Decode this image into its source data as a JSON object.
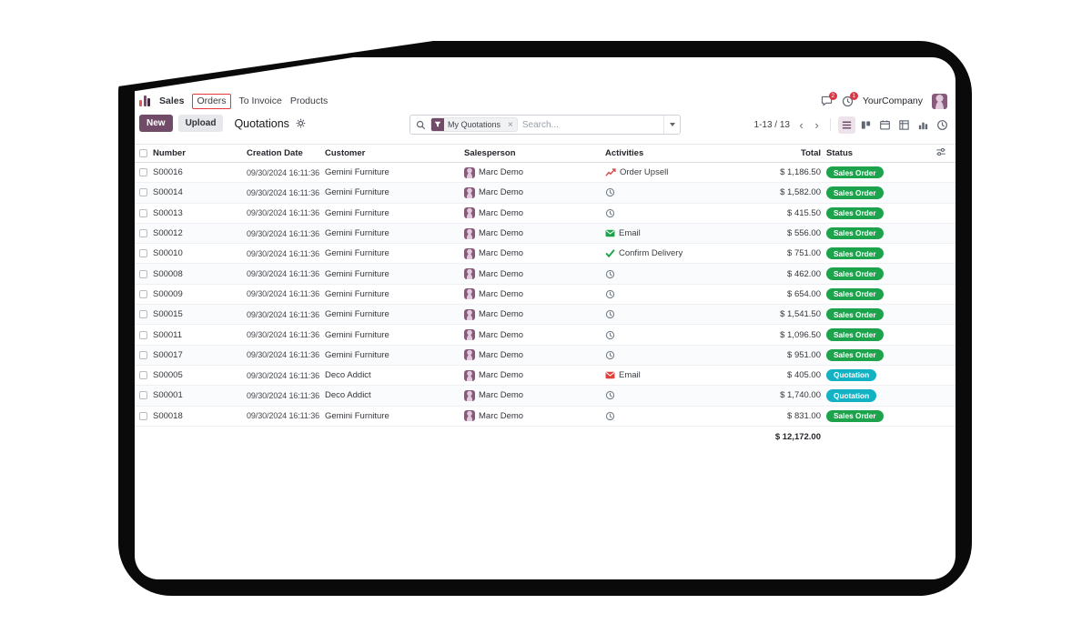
{
  "nav": {
    "menus": {
      "sales": "Sales",
      "orders": "Orders",
      "to_invoice": "To Invoice",
      "products": "Products"
    },
    "messages_badge": "2",
    "activities_badge": "1",
    "company": "YourCompany"
  },
  "toolbar": {
    "new_label": "New",
    "upload_label": "Upload",
    "title": "Quotations",
    "pager": "1-13 / 13"
  },
  "search": {
    "facet_label": "My Quotations",
    "placeholder": "Search..."
  },
  "icons": {
    "facet_remove": "×",
    "pager_prev": "‹",
    "pager_next": "›"
  },
  "view_switcher": [
    "list-view-icon",
    "kanban-view-icon",
    "calendar-view-icon",
    "pivot-view-icon",
    "graph-view-icon",
    "activity-view-icon"
  ],
  "active_view": "list-view-icon",
  "table": {
    "columns": {
      "number": "Number",
      "creation_date": "Creation Date",
      "customer": "Customer",
      "salesperson": "Salesperson",
      "activities": "Activities",
      "total": "Total",
      "status": "Status"
    },
    "rows": [
      {
        "number": "S00016",
        "creation_date": "09/30/2024 16:11:36",
        "customer": "Gemini Furniture",
        "salesperson": "Marc Demo",
        "activity": {
          "icon": "upsell-chart-icon",
          "label": "Order Upsell",
          "color": "#d64541"
        },
        "total": "$ 1,186.50",
        "status": "Sales Order"
      },
      {
        "number": "S00014",
        "creation_date": "09/30/2024 16:11:36",
        "customer": "Gemini Furniture",
        "salesperson": "Marc Demo",
        "activity": {
          "icon": "clock-icon",
          "label": "",
          "color": ""
        },
        "total": "$ 1,582.00",
        "status": "Sales Order"
      },
      {
        "number": "S00013",
        "creation_date": "09/30/2024 16:11:36",
        "customer": "Gemini Furniture",
        "salesperson": "Marc Demo",
        "activity": {
          "icon": "clock-icon",
          "label": "",
          "color": ""
        },
        "total": "$ 415.50",
        "status": "Sales Order"
      },
      {
        "number": "S00012",
        "creation_date": "09/30/2024 16:11:36",
        "customer": "Gemini Furniture",
        "salesperson": "Marc Demo",
        "activity": {
          "icon": "email-icon",
          "label": "Email",
          "color": "#1ea34d"
        },
        "total": "$ 556.00",
        "status": "Sales Order"
      },
      {
        "number": "S00010",
        "creation_date": "09/30/2024 16:11:36",
        "customer": "Gemini Furniture",
        "salesperson": "Marc Demo",
        "activity": {
          "icon": "check-icon",
          "label": "Confirm Delivery",
          "color": "#1ea34d"
        },
        "total": "$ 751.00",
        "status": "Sales Order"
      },
      {
        "number": "S00008",
        "creation_date": "09/30/2024 16:11:36",
        "customer": "Gemini Furniture",
        "salesperson": "Marc Demo",
        "activity": {
          "icon": "clock-icon",
          "label": "",
          "color": ""
        },
        "total": "$ 462.00",
        "status": "Sales Order"
      },
      {
        "number": "S00009",
        "creation_date": "09/30/2024 16:11:36",
        "customer": "Gemini Furniture",
        "salesperson": "Marc Demo",
        "activity": {
          "icon": "clock-icon",
          "label": "",
          "color": ""
        },
        "total": "$ 654.00",
        "status": "Sales Order"
      },
      {
        "number": "S00015",
        "creation_date": "09/30/2024 16:11:36",
        "customer": "Gemini Furniture",
        "salesperson": "Marc Demo",
        "activity": {
          "icon": "clock-icon",
          "label": "",
          "color": ""
        },
        "total": "$ 1,541.50",
        "status": "Sales Order"
      },
      {
        "number": "S00011",
        "creation_date": "09/30/2024 16:11:36",
        "customer": "Gemini Furniture",
        "salesperson": "Marc Demo",
        "activity": {
          "icon": "clock-icon",
          "label": "",
          "color": ""
        },
        "total": "$ 1,096.50",
        "status": "Sales Order"
      },
      {
        "number": "S00017",
        "creation_date": "09/30/2024 16:11:36",
        "customer": "Gemini Furniture",
        "salesperson": "Marc Demo",
        "activity": {
          "icon": "clock-icon",
          "label": "",
          "color": ""
        },
        "total": "$ 951.00",
        "status": "Sales Order"
      },
      {
        "number": "S00005",
        "creation_date": "09/30/2024 16:11:36",
        "customer": "Deco Addict",
        "salesperson": "Marc Demo",
        "activity": {
          "icon": "email-icon",
          "label": "Email",
          "color": "#e2403d"
        },
        "total": "$ 405.00",
        "status": "Quotation"
      },
      {
        "number": "S00001",
        "creation_date": "09/30/2024 16:11:36",
        "customer": "Deco Addict",
        "salesperson": "Marc Demo",
        "activity": {
          "icon": "clock-icon",
          "label": "",
          "color": ""
        },
        "total": "$ 1,740.00",
        "status": "Quotation"
      },
      {
        "number": "S00018",
        "creation_date": "09/30/2024 16:11:36",
        "customer": "Gemini Furniture",
        "salesperson": "Marc Demo",
        "activity": {
          "icon": "clock-icon",
          "label": "",
          "color": ""
        },
        "total": "$ 831.00",
        "status": "Sales Order"
      }
    ],
    "footer_total": "$ 12,172.00"
  },
  "colors": {
    "accent": "#714B67",
    "badges": {
      "Sales Order": "#1ea34d",
      "Quotation": "#12b2c4"
    },
    "annotation_highlight": "#e5383b",
    "notification": "#dc3545"
  }
}
